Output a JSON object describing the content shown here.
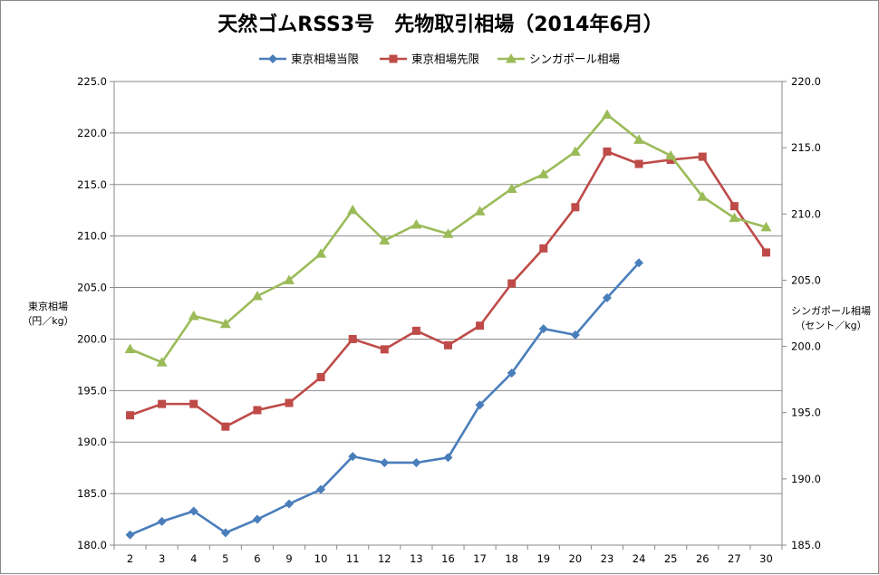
{
  "chart_data": {
    "type": "line",
    "title": "天然ゴムRSS3号　先物取引相場（2014年6月）",
    "categories": [
      "2",
      "3",
      "4",
      "5",
      "6",
      "9",
      "10",
      "11",
      "12",
      "13",
      "16",
      "17",
      "18",
      "19",
      "20",
      "23",
      "24",
      "25",
      "26",
      "27",
      "30"
    ],
    "y_left": {
      "label_line1": "東京相場",
      "label_line2": "（円／kg）",
      "range": [
        180,
        225
      ],
      "ticks": [
        "180.0",
        "185.0",
        "190.0",
        "195.0",
        "200.0",
        "205.0",
        "210.0",
        "215.0",
        "220.0",
        "225.0"
      ]
    },
    "y_right": {
      "label_line1": "シンガポール相場",
      "label_line2": "（セント／kg）",
      "range": [
        185,
        220
      ],
      "ticks": [
        "185.0",
        "190.0",
        "195.0",
        "200.0",
        "205.0",
        "210.0",
        "215.0",
        "220.0"
      ]
    },
    "grid": true,
    "legend_position": "top",
    "series": [
      {
        "name": "東京相場当限",
        "axis": "left",
        "color": "#4a7ebb",
        "marker": "diamond",
        "values": [
          181.0,
          182.3,
          183.3,
          181.2,
          182.5,
          184.0,
          185.4,
          188.6,
          188.0,
          188.0,
          188.5,
          193.6,
          196.7,
          201.0,
          200.4,
          204.0,
          207.4,
          null,
          null,
          null,
          null
        ]
      },
      {
        "name": "東京相場先限",
        "axis": "left",
        "color": "#be4b48",
        "marker": "square",
        "values": [
          192.6,
          193.7,
          193.7,
          191.5,
          193.1,
          193.8,
          196.3,
          200.0,
          199.0,
          200.8,
          199.4,
          201.3,
          205.4,
          208.8,
          212.8,
          218.2,
          217.0,
          217.4,
          217.7,
          212.9,
          208.4
        ]
      },
      {
        "name": "シンガポール相場",
        "axis": "right",
        "color": "#9bbb59",
        "marker": "triangle",
        "values": [
          199.8,
          198.8,
          202.3,
          201.7,
          203.8,
          205.0,
          207.0,
          210.3,
          208.0,
          209.2,
          208.5,
          210.2,
          211.9,
          213.0,
          214.7,
          217.5,
          215.6,
          214.4,
          211.3,
          209.7,
          209.0
        ]
      }
    ]
  }
}
